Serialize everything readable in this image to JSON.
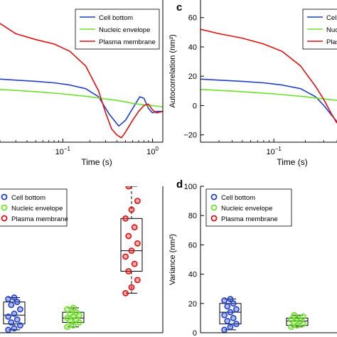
{
  "colors": {
    "cell_bottom": "#1f3fcf",
    "nucleic_envelope": "#6fe02a",
    "plasma_membrane": "#e01010",
    "axis": "#000000"
  },
  "chart_data": [
    {
      "id": "panel-top-left",
      "type": "line",
      "panel_letter": "",
      "x_scale": "log",
      "xlim": [
        0.02,
        1.3
      ],
      "ylim": [
        -25,
        72
      ],
      "xlabel": "Time (s)",
      "ylabel": "",
      "xticks": [
        {
          "value": 0.1,
          "base": "10",
          "exp": "−1"
        },
        {
          "value": 1,
          "base": "10",
          "exp": "0"
        }
      ],
      "yticks": [],
      "legend": {
        "position": "top-right",
        "entries": [
          "Cell bottom",
          "Nucleic envelope",
          "Plasma membrane"
        ]
      },
      "series": [
        {
          "name": "Cell bottom",
          "color": "#1f3fcf",
          "x": [
            0.02,
            0.05,
            0.08,
            0.12,
            0.18,
            0.25,
            0.33,
            0.42,
            0.5,
            0.6,
            0.72,
            0.8,
            0.9,
            1.0,
            1.1,
            1.3
          ],
          "y": [
            18,
            16.5,
            15.5,
            14,
            11.5,
            6,
            -6,
            -14,
            -10,
            -2,
            6,
            5,
            -2,
            -5,
            -4,
            -4
          ]
        },
        {
          "name": "Nucleic envelope",
          "color": "#6fe02a",
          "x": [
            0.02,
            0.05,
            0.1,
            0.2,
            0.3,
            0.4,
            0.5,
            0.6,
            0.8,
            1.0,
            1.3
          ],
          "y": [
            11,
            9.5,
            8,
            6,
            4.5,
            3.5,
            2.5,
            1.5,
            0.5,
            0,
            -1
          ]
        },
        {
          "name": "Plasma membrane",
          "color": "#e01010",
          "x": [
            0.02,
            0.03,
            0.05,
            0.08,
            0.12,
            0.18,
            0.25,
            0.3,
            0.35,
            0.4,
            0.45,
            0.5,
            0.6,
            0.7,
            0.8,
            0.9,
            1.0,
            1.1,
            1.3
          ],
          "y": [
            56,
            49,
            45,
            42,
            37,
            27,
            10,
            -5,
            -16,
            -20,
            -22,
            -18,
            -10,
            -4,
            0,
            1,
            -3,
            -5,
            -4
          ]
        }
      ]
    },
    {
      "id": "panel-c",
      "type": "line",
      "panel_letter": "c",
      "x_scale": "log",
      "xlim": [
        0.02,
        0.4
      ],
      "ylim": [
        -25,
        72
      ],
      "xlabel": "Time (s)",
      "ylabel": "Autocorrelation (nm²)",
      "xticks": [
        {
          "value": 0.1,
          "base": "10",
          "exp": "−1"
        }
      ],
      "yticks": [
        -20,
        0,
        20,
        40,
        60
      ],
      "legend": {
        "position": "top-right",
        "entries": [
          "Cell bottom",
          "Nucleic envelope",
          "Plasma membrane"
        ]
      },
      "series": [
        {
          "name": "Cell bottom",
          "color": "#1f3fcf",
          "x": [
            0.02,
            0.05,
            0.08,
            0.12,
            0.18,
            0.25,
            0.3,
            0.35,
            0.4
          ],
          "y": [
            18,
            16.5,
            15.5,
            14,
            11.5,
            6,
            0,
            -6,
            -11
          ]
        },
        {
          "name": "Nucleic envelope",
          "color": "#6fe02a",
          "x": [
            0.02,
            0.05,
            0.1,
            0.2,
            0.3,
            0.4
          ],
          "y": [
            11,
            9.5,
            8,
            6,
            4.5,
            3.5
          ]
        },
        {
          "name": "Plasma membrane",
          "color": "#e01010",
          "x": [
            0.02,
            0.03,
            0.05,
            0.08,
            0.12,
            0.18,
            0.25,
            0.3,
            0.35,
            0.4
          ],
          "y": [
            52,
            49,
            46,
            42,
            37,
            27,
            13,
            4,
            -5,
            -12
          ]
        }
      ]
    },
    {
      "id": "panel-bottom-left",
      "type": "box",
      "panel_letter": "",
      "ylim": [
        0,
        100
      ],
      "ylabel": "",
      "yticks": [],
      "legend": {
        "position": "top-left",
        "entries": [
          "Cell bottom",
          "Nucleic envelope",
          "Plasma membrane"
        ]
      },
      "groups": [
        {
          "name": "Cell bottom",
          "color": "#1f3fcf",
          "whisker_low": 2,
          "q1": 6,
          "median": 12,
          "q3": 21,
          "whisker_high": 24,
          "points": [
            2,
            3,
            5,
            7,
            9,
            11,
            13,
            16,
            19,
            21,
            23,
            24
          ]
        },
        {
          "name": "Nucleic envelope",
          "color": "#6fe02a",
          "whisker_low": 4,
          "q1": 7,
          "median": 10,
          "q3": 14,
          "whisker_high": 17,
          "points": [
            4,
            5,
            7,
            8,
            9,
            10,
            11,
            12,
            13,
            14,
            16,
            17
          ]
        },
        {
          "name": "Plasma membrane",
          "color": "#e01010",
          "whisker_low": 27,
          "q1": 42,
          "median": 56,
          "q3": 78,
          "whisker_high": 100,
          "points": [
            27,
            31,
            36,
            42,
            47,
            52,
            56,
            61,
            66,
            72,
            78,
            84,
            90,
            100
          ]
        }
      ]
    },
    {
      "id": "panel-d",
      "type": "box",
      "panel_letter": "d",
      "ylim": [
        0,
        100
      ],
      "ylabel": "Variance (nm²)",
      "yticks": [
        0,
        20,
        40,
        60,
        80,
        100
      ],
      "legend": {
        "position": "top-left",
        "entries": [
          "Cell bottom",
          "Nucleic envelope",
          "Plasma membrane"
        ]
      },
      "groups": [
        {
          "name": "Cell bottom",
          "color": "#1f3fcf",
          "whisker_low": 2,
          "q1": 6,
          "median": 14,
          "q3": 20,
          "whisker_high": 23,
          "points": [
            2,
            4,
            6,
            8,
            10,
            12,
            14,
            16,
            18,
            20,
            22,
            23
          ]
        },
        {
          "name": "Nucleic envelope",
          "color": "#6fe02a",
          "whisker_low": 4,
          "q1": 5,
          "median": 8,
          "q3": 10,
          "whisker_high": 12,
          "points": [
            4,
            5,
            6,
            7,
            8,
            9,
            10,
            11,
            12
          ]
        }
      ]
    }
  ]
}
